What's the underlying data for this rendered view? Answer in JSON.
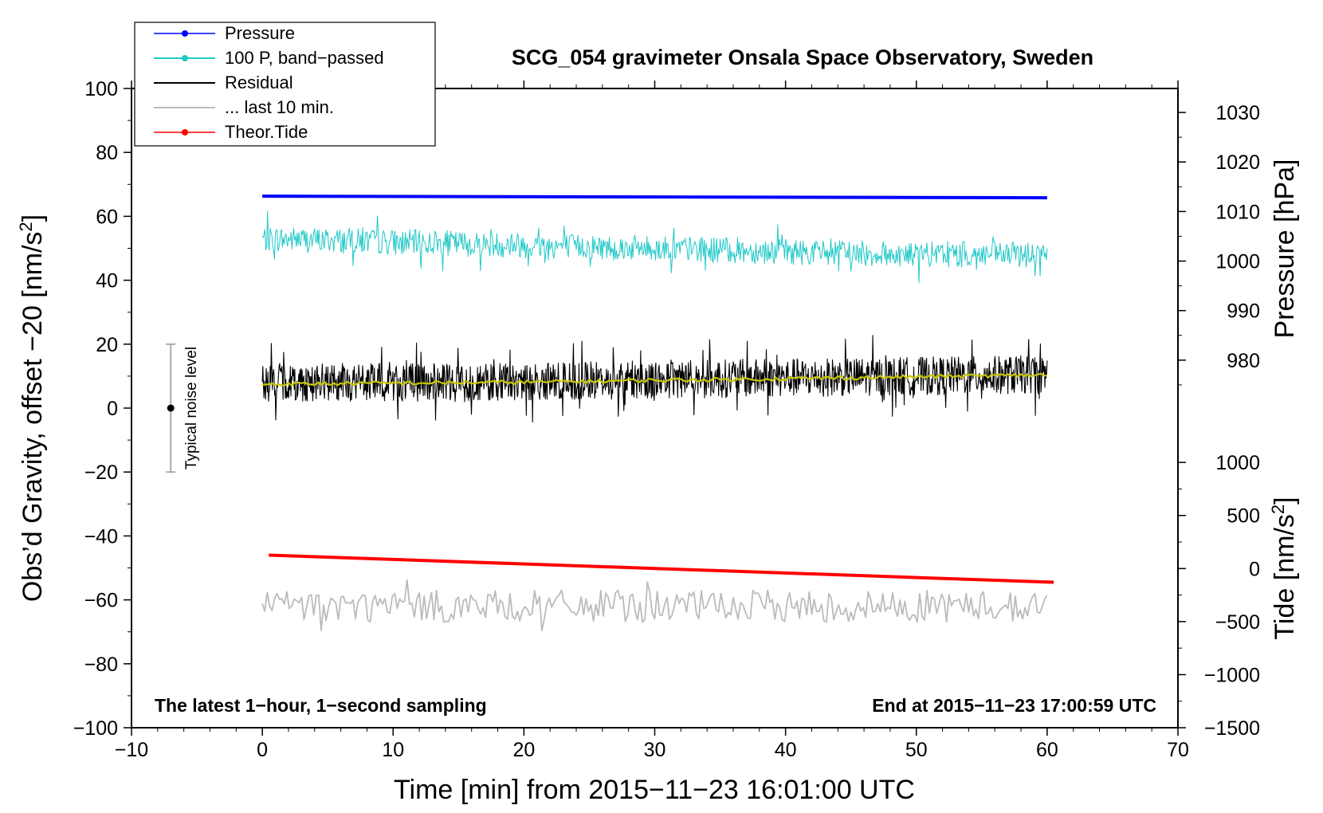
{
  "chart_data": {
    "type": "line",
    "title": "SCG_054 gravimeter Onsala Space Observatory, Sweden",
    "xlabel": "Time [min] from 2015−11−23 16:01:00 UTC",
    "ylabel_left": "Obs’d Gravity, offset −20 [nm/s",
    "ylabel_left_sup": "2",
    "ylabel_left_close": "]",
    "ylabel_right_pressure": "Pressure [hPa]",
    "ylabel_right_tide": "Tide [nm/s",
    "ylabel_right_tide_sup": "2",
    "ylabel_right_tide_close": "]",
    "xlim": [
      -10,
      70
    ],
    "ylim_left": [
      -100,
      100
    ],
    "x_ticks": [
      -10,
      0,
      10,
      20,
      30,
      40,
      50,
      60,
      70
    ],
    "x_tick_labels": [
      "−10",
      "0",
      "10",
      "20",
      "30",
      "40",
      "50",
      "60",
      "70"
    ],
    "y_left_ticks": [
      100,
      80,
      60,
      40,
      20,
      0,
      -20,
      -40,
      -60,
      -80,
      -100
    ],
    "y_left_tick_labels": [
      "100",
      "80",
      "60",
      "40",
      "20",
      "0",
      "−20",
      "−40",
      "−60",
      "−80",
      "−100"
    ],
    "pressure_axis": {
      "ticks": [
        1030,
        1020,
        1010,
        1000,
        990,
        980
      ],
      "tick_labels": [
        "1030",
        "1020",
        "1010",
        "1000",
        "990",
        "980"
      ],
      "maps_to_left": [
        [
          1030,
          92.5
        ],
        [
          980,
          15
        ]
      ]
    },
    "tide_axis": {
      "ticks": [
        1000,
        500,
        0,
        -500,
        -1000,
        -1500
      ],
      "tick_labels": [
        "1000",
        "500",
        "0",
        "−500",
        "−1000",
        "−1500"
      ],
      "maps_to_left": [
        [
          1000,
          -17
        ],
        [
          -1500,
          -100
        ]
      ]
    },
    "series": [
      {
        "name": "Pressure",
        "color": "#0000ff",
        "style": "line-with-dot-marker",
        "x": [
          0,
          60
        ],
        "y": [
          66.3,
          65.8
        ]
      },
      {
        "name": "100 P, band−passed",
        "color": "#20c8c8",
        "style": "noisy-line",
        "x": [
          0,
          10,
          20,
          30,
          40,
          50,
          60
        ],
        "y": [
          53,
          52,
          51,
          50,
          49,
          48,
          48
        ],
        "noise_amplitude": 4
      },
      {
        "name": "Residual",
        "color": "#000000",
        "style": "noisy-line",
        "x": [
          0,
          10,
          20,
          30,
          40,
          50,
          60
        ],
        "y": [
          8,
          8,
          8,
          9,
          9.5,
          10,
          10.5
        ],
        "noise_amplitude": 6
      },
      {
        "name": "... last 10 min.",
        "color": "#bbbbbb",
        "style": "noisy-line",
        "x": [
          0,
          10,
          20,
          30,
          40,
          50,
          60
        ],
        "y": [
          -62,
          -62,
          -62,
          -62,
          -62,
          -62,
          -62
        ],
        "noise_amplitude": 5
      },
      {
        "name": "Theor.Tide",
        "color": "#ff0000",
        "style": "line-with-dot-marker",
        "x": [
          0.5,
          60.5
        ],
        "y": [
          -46,
          -54.5
        ]
      }
    ],
    "smoothed_residual": {
      "color": "#c8c800",
      "x": [
        0,
        10,
        20,
        30,
        40,
        50,
        60
      ],
      "y": [
        7.5,
        7.8,
        8.1,
        8.7,
        9.2,
        9.8,
        10.4
      ]
    },
    "noise_bar": {
      "label": "Typical noise level",
      "x": -7,
      "y": 0,
      "y_low": -20,
      "y_high": 20
    },
    "annotations": {
      "bottom_left": "The latest 1−hour, 1−second sampling",
      "bottom_right": "End at 2015−11−23 17:00:59 UTC"
    },
    "legend_position": "top-left",
    "grid": false
  }
}
